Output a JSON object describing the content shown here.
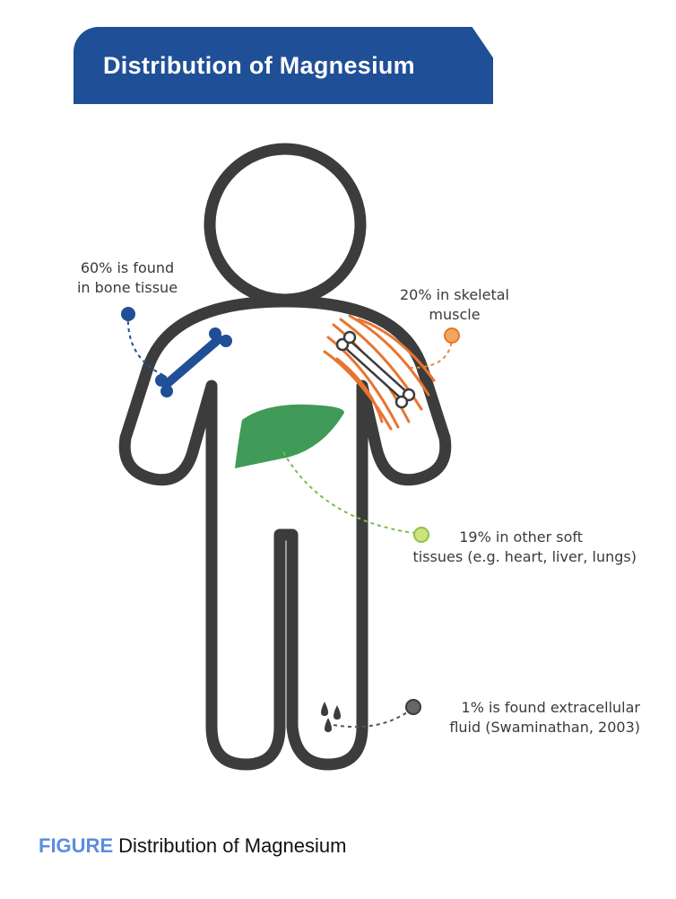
{
  "title": "Distribution of Magnesium",
  "callouts": {
    "bone": {
      "line1": "60% is found",
      "line2": "in bone tissue",
      "color": "#1f4f96"
    },
    "muscle": {
      "line1": "20% in skeletal",
      "line2": "muscle",
      "color": "#e8883a"
    },
    "soft": {
      "line1": "19% in other soft",
      "line2": "tissues (e.g. heart, liver, lungs)",
      "color": "#b9d96b"
    },
    "fluid": {
      "line1": "1% is found extracellular",
      "line2": "fluid (Swaminathan, 2003)",
      "color": "#555555"
    }
  },
  "caption": {
    "prefix": "FIGURE",
    "text": "Distribution of Magnesium"
  },
  "colors": {
    "banner": "#1f4f96",
    "body_outline": "#3c3c3c",
    "bone": "#1f4f96",
    "muscle": "#e8752e",
    "liver": "#3f9b57",
    "caption_prefix": "#5b8de0"
  }
}
